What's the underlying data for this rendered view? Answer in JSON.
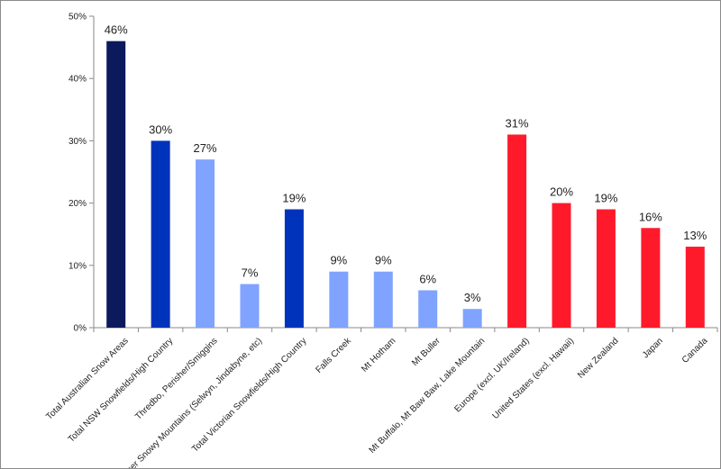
{
  "chart_data": {
    "type": "bar",
    "title": "",
    "xlabel": "",
    "ylabel": "",
    "ylim": [
      0,
      50
    ],
    "y_ticks": [
      0,
      10,
      20,
      30,
      40,
      50
    ],
    "y_tick_format": "percent",
    "grid": false,
    "legend": "none",
    "categories": [
      "Total Australian Snow Areas",
      "Total NSW Snowfields/High Country",
      "Thredbo, Perisher/Smiggins",
      "Other Snowy Mountains (Selwyn, Jindabyne, etc)",
      "Total Victorian Snowfields/High Country",
      "Falls Creek",
      "Mt Hotham",
      "Mt Buller",
      "Mt Buffalo, Mt Baw Baw, Lake Mountain",
      "Europe (excl. UK/Ireland)",
      "United States (excl. Hawaii)",
      "New Zealand",
      "Japan",
      "Canada"
    ],
    "values": [
      46,
      30,
      27,
      7,
      19,
      9,
      9,
      6,
      3,
      31,
      20,
      19,
      16,
      13
    ],
    "data_labels": [
      "46%",
      "30%",
      "27%",
      "7%",
      "19%",
      "9%",
      "9%",
      "6%",
      "3%",
      "31%",
      "20%",
      "19%",
      "16%",
      "13%"
    ],
    "bar_colors": [
      "#0b1a5c",
      "#0033bb",
      "#7fa3ff",
      "#7fa3ff",
      "#0033bb",
      "#7fa3ff",
      "#7fa3ff",
      "#7fa3ff",
      "#7fa3ff",
      "#ff1a2b",
      "#ff1a2b",
      "#ff1a2b",
      "#ff1a2b",
      "#ff1a2b"
    ],
    "axis_color": "#8a8a8a"
  }
}
